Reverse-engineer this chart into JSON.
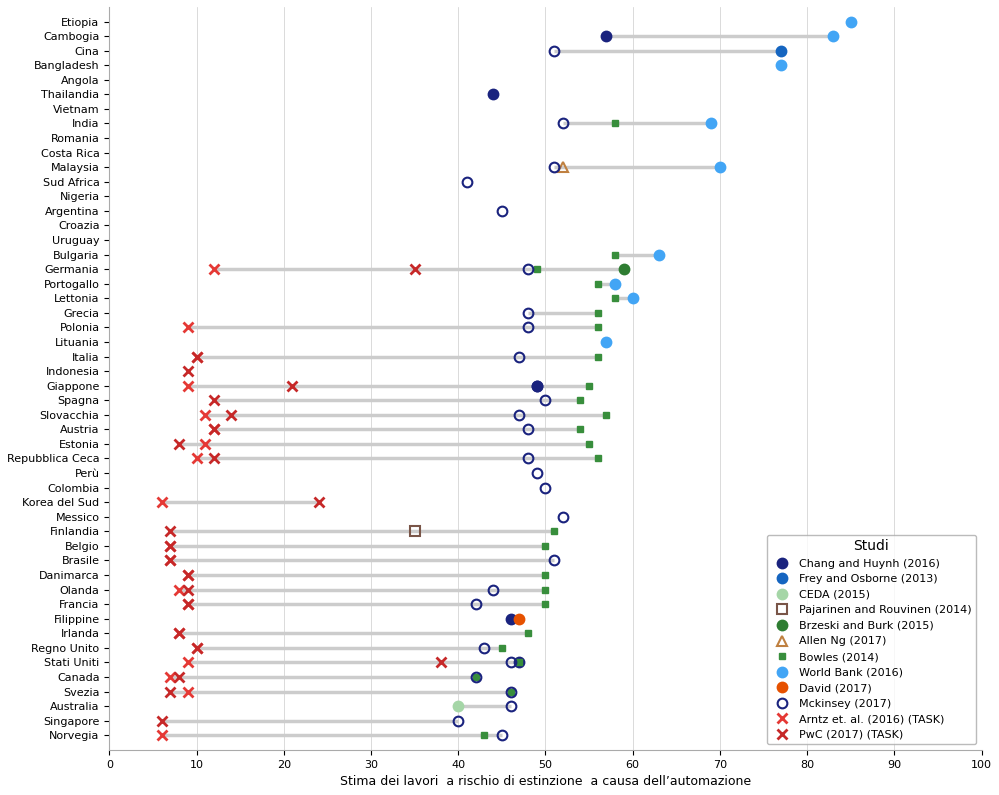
{
  "countries": [
    "Etiopia",
    "Cambogia",
    "Cina",
    "Bangladesh",
    "Angola",
    "Thailandia",
    "Vietnam",
    "India",
    "Romania",
    "Costa Rica",
    "Malaysia",
    "Sud Africa",
    "Nigeria",
    "Argentina",
    "Croazia",
    "Uruguay",
    "Bulgaria",
    "Germania",
    "Portogallo",
    "Lettonia",
    "Grecia",
    "Polonia",
    "Lituania",
    "Italia",
    "Indonesia",
    "Giappone",
    "Spagna",
    "Slovacchia",
    "Austria",
    "Estonia",
    "Repubblica Ceca",
    "Perù",
    "Colombia",
    "Korea del Sud",
    "Messico",
    "Finlandia",
    "Belgio",
    "Brasile",
    "Danimarca",
    "Olanda",
    "Francia",
    "Filippine",
    "Irlanda",
    "Regno Unito",
    "Stati Uniti",
    "Canada",
    "Svezia",
    "Australia",
    "Singapore",
    "Norvegia"
  ],
  "data": {
    "Chang and Huynh (2016)": {
      "color": "#1a237e",
      "marker": "o",
      "filled": true,
      "size": 55,
      "values": {
        "Etiopia": null,
        "Cambogia": 57,
        "Cina": null,
        "Bangladesh": null,
        "Angola": null,
        "Thailandia": 44,
        "Vietnam": null,
        "India": null,
        "Romania": null,
        "Costa Rica": null,
        "Malaysia": null,
        "Sud Africa": null,
        "Nigeria": null,
        "Argentina": null,
        "Croazia": null,
        "Uruguay": null,
        "Bulgaria": null,
        "Germania": null,
        "Portogallo": null,
        "Lettonia": null,
        "Grecia": null,
        "Polonia": null,
        "Lituania": null,
        "Italia": null,
        "Indonesia": null,
        "Giappone": 49,
        "Spagna": null,
        "Slovacchia": null,
        "Austria": null,
        "Estonia": null,
        "Repubblica Ceca": null,
        "Perù": null,
        "Colombia": null,
        "Korea del Sud": null,
        "Messico": null,
        "Finlandia": null,
        "Belgio": null,
        "Brasile": null,
        "Danimarca": null,
        "Olanda": null,
        "Francia": null,
        "Filippine": 46,
        "Irlanda": null,
        "Regno Unito": null,
        "Stati Uniti": 47,
        "Canada": null,
        "Svezia": null,
        "Australia": null,
        "Singapore": null,
        "Norvegia": null
      }
    },
    "Frey and Osborne (2013)": {
      "color": "#1565c0",
      "marker": "o",
      "filled": true,
      "size": 55,
      "values": {
        "Etiopia": null,
        "Cambogia": null,
        "Cina": null,
        "Bangladesh": null,
        "Angola": null,
        "Thailandia": null,
        "Vietnam": null,
        "India": null,
        "Romania": null,
        "Costa Rica": null,
        "Malaysia": null,
        "Sud Africa": null,
        "Nigeria": null,
        "Argentina": null,
        "Croazia": null,
        "Uruguay": null,
        "Bulgaria": null,
        "Germania": null,
        "Portogallo": null,
        "Lettonia": null,
        "Grecia": null,
        "Polonia": null,
        "Lituania": null,
        "Italia": null,
        "Indonesia": null,
        "Giappone": null,
        "Spagna": null,
        "Slovacchia": null,
        "Austria": null,
        "Estonia": null,
        "Repubblica Ceca": null,
        "Perù": null,
        "Colombia": null,
        "Korea del Sud": null,
        "Messico": null,
        "Finlandia": null,
        "Belgio": null,
        "Brasile": null,
        "Danimarca": null,
        "Olanda": null,
        "Francia": null,
        "Filippine": null,
        "Irlanda": null,
        "Regno Unito": null,
        "Stati Uniti": null,
        "Canada": null,
        "Svezia": null,
        "Australia": null,
        "Singapore": null,
        "Norvegia": null
      }
    },
    "CEDA (2015)": {
      "color": "#a5d6a7",
      "marker": "o",
      "filled": true,
      "size": 55,
      "values": {
        "Etiopia": null,
        "Cambogia": null,
        "Cina": null,
        "Bangladesh": null,
        "Angola": null,
        "Thailandia": null,
        "Vietnam": null,
        "India": null,
        "Romania": null,
        "Costa Rica": null,
        "Malaysia": null,
        "Sud Africa": null,
        "Nigeria": null,
        "Argentina": null,
        "Croazia": null,
        "Uruguay": null,
        "Bulgaria": null,
        "Germania": null,
        "Portogallo": null,
        "Lettonia": null,
        "Grecia": null,
        "Polonia": null,
        "Lituania": null,
        "Italia": null,
        "Indonesia": null,
        "Giappone": null,
        "Spagna": null,
        "Slovacchia": null,
        "Austria": null,
        "Estonia": null,
        "Repubblica Ceca": null,
        "Perù": null,
        "Colombia": null,
        "Korea del Sud": null,
        "Messico": null,
        "Finlandia": null,
        "Belgio": null,
        "Brasile": null,
        "Danimarca": null,
        "Olanda": null,
        "Francia": null,
        "Filippine": null,
        "Irlanda": null,
        "Regno Unito": null,
        "Stati Uniti": null,
        "Canada": null,
        "Svezia": null,
        "Australia": 40,
        "Singapore": null,
        "Norvegia": null
      }
    },
    "Pajarinen and Rouvinen (2014)": {
      "color": "#5d4037",
      "marker": "s",
      "filled": false,
      "size": 45,
      "values": {
        "Etiopia": null,
        "Cambogia": null,
        "Cina": null,
        "Bangladesh": null,
        "Angola": null,
        "Thailandia": null,
        "Vietnam": null,
        "India": null,
        "Romania": null,
        "Costa Rica": null,
        "Malaysia": null,
        "Sud Africa": null,
        "Nigeria": null,
        "Argentina": null,
        "Croazia": null,
        "Uruguay": null,
        "Bulgaria": null,
        "Germania": null,
        "Portogallo": null,
        "Lettonia": null,
        "Grecia": null,
        "Polonia": null,
        "Lituania": null,
        "Italia": null,
        "Indonesia": null,
        "Giappone": null,
        "Spagna": null,
        "Slovacchia": null,
        "Austria": null,
        "Estonia": null,
        "Repubblica Ceca": null,
        "Perù": null,
        "Colombia": null,
        "Korea del Sud": null,
        "Messico": null,
        "Finlandia": 35,
        "Belgio": null,
        "Brasile": null,
        "Danimarca": null,
        "Olanda": null,
        "Francia": null,
        "Filippine": null,
        "Irlanda": null,
        "Regno Unito": null,
        "Stati Uniti": null,
        "Canada": null,
        "Svezia": null,
        "Australia": null,
        "Singapore": null,
        "Norvegia": null
      }
    },
    "Brzeski and Burk (2015)": {
      "color": "#2e7d32",
      "marker": "o",
      "filled": true,
      "size": 55,
      "values": {
        "Etiopia": null,
        "Cambogia": null,
        "Cina": null,
        "Bangladesh": null,
        "Angola": null,
        "Thailandia": null,
        "Vietnam": null,
        "India": null,
        "Romania": null,
        "Costa Rica": null,
        "Malaysia": null,
        "Sud Africa": null,
        "Nigeria": null,
        "Argentina": null,
        "Croazia": null,
        "Uruguay": null,
        "Bulgaria": null,
        "Germania": 59,
        "Portogallo": null,
        "Lettonia": null,
        "Grecia": null,
        "Polonia": null,
        "Lituania": null,
        "Italia": null,
        "Indonesia": null,
        "Giappone": null,
        "Spagna": null,
        "Slovacchia": null,
        "Austria": null,
        "Estonia": null,
        "Repubblica Ceca": null,
        "Perù": null,
        "Colombia": null,
        "Korea del Sud": null,
        "Messico": null,
        "Finlandia": null,
        "Belgio": null,
        "Brasile": null,
        "Danimarca": null,
        "Olanda": null,
        "Francia": null,
        "Filippine": null,
        "Irlanda": null,
        "Regno Unito": null,
        "Stati Uniti": null,
        "Canada": null,
        "Svezia": null,
        "Australia": null,
        "Singapore": null,
        "Norvegia": null
      }
    },
    "Allen Ng (2017)": {
      "color": "#bf8040",
      "marker": "^",
      "filled": false,
      "size": 55,
      "values": {
        "Etiopia": null,
        "Cambogia": null,
        "Cina": null,
        "Bangladesh": null,
        "Angola": null,
        "Thailandia": null,
        "Vietnam": null,
        "India": null,
        "Romania": null,
        "Costa Rica": null,
        "Malaysia": 52,
        "Sud Africa": null,
        "Nigeria": null,
        "Argentina": null,
        "Croazia": null,
        "Uruguay": null,
        "Bulgaria": null,
        "Germania": null,
        "Portogallo": null,
        "Lettonia": null,
        "Grecia": null,
        "Polonia": null,
        "Lituania": null,
        "Italia": null,
        "Indonesia": null,
        "Giappone": null,
        "Spagna": null,
        "Slovacchia": null,
        "Austria": null,
        "Estonia": null,
        "Repubblica Ceca": null,
        "Perù": null,
        "Colombia": null,
        "Korea del Sud": null,
        "Messico": null,
        "Finlandia": null,
        "Belgio": null,
        "Brasile": null,
        "Danimarca": null,
        "Olanda": null,
        "Francia": null,
        "Filippine": null,
        "Irlanda": null,
        "Regno Unito": null,
        "Stati Uniti": null,
        "Canada": null,
        "Svezia": null,
        "Australia": null,
        "Singapore": null,
        "Norvegia": null
      }
    },
    "Bowles (2014)": {
      "color": "#388e3c",
      "marker": "s",
      "filled": true,
      "size": 30,
      "values": {
        "Etiopia": null,
        "Cambogia": null,
        "Cina": null,
        "Bangladesh": null,
        "Angola": null,
        "Thailandia": null,
        "Vietnam": null,
        "India": 58,
        "Romania": null,
        "Costa Rica": null,
        "Malaysia": null,
        "Sud Africa": null,
        "Nigeria": null,
        "Argentina": null,
        "Croazia": null,
        "Uruguay": null,
        "Bulgaria": 58,
        "Germania": 49,
        "Portogallo": 56,
        "Lettonia": 58,
        "Grecia": 56,
        "Polonia": 56,
        "Lituania": 57,
        "Italia": 56,
        "Indonesia": null,
        "Giappone": 55,
        "Spagna": 54,
        "Slovacchia": 57,
        "Austria": 54,
        "Estonia": 55,
        "Repubblica Ceca": 56,
        "Perù": null,
        "Colombia": null,
        "Korea del Sud": null,
        "Messico": null,
        "Finlandia": 51,
        "Belgio": 50,
        "Brasile": null,
        "Danimarca": 50,
        "Olanda": 50,
        "Francia": 50,
        "Filippine": null,
        "Irlanda": 48,
        "Regno Unito": 45,
        "Stati Uniti": 47,
        "Canada": 42,
        "Svezia": 46,
        "Australia": null,
        "Singapore": null,
        "Norvegia": 43
      }
    },
    "World Bank (2016)": {
      "color": "#42a5f5",
      "marker": "o",
      "filled": true,
      "size": 55,
      "values": {
        "Etiopia": 85,
        "Cambogia": 83,
        "Cina": null,
        "Bangladesh": 77,
        "Angola": null,
        "Thailandia": null,
        "Vietnam": null,
        "India": 69,
        "Romania": null,
        "Costa Rica": null,
        "Malaysia": 70,
        "Sud Africa": null,
        "Nigeria": null,
        "Argentina": null,
        "Croazia": null,
        "Uruguay": null,
        "Bulgaria": 63,
        "Germania": null,
        "Portogallo": 58,
        "Lettonia": 60,
        "Grecia": null,
        "Polonia": null,
        "Lituania": 57,
        "Italia": null,
        "Indonesia": null,
        "Giappone": null,
        "Spagna": null,
        "Slovacchia": null,
        "Austria": null,
        "Estonia": null,
        "Repubblica Ceca": null,
        "Perù": null,
        "Colombia": null,
        "Korea del Sud": null,
        "Messico": null,
        "Finlandia": null,
        "Belgio": null,
        "Brasile": null,
        "Danimarca": null,
        "Olanda": null,
        "Francia": null,
        "Filippine": null,
        "Irlanda": null,
        "Regno Unito": null,
        "Stati Uniti": null,
        "Canada": null,
        "Svezia": null,
        "Australia": null,
        "Singapore": null,
        "Norvegia": null
      }
    },
    "David (2017)": {
      "color": "#e65100",
      "marker": "o",
      "filled": true,
      "size": 55,
      "values": {
        "Etiopia": null,
        "Cambogia": null,
        "Cina": null,
        "Bangladesh": null,
        "Angola": null,
        "Thailandia": null,
        "Vietnam": null,
        "India": null,
        "Romania": null,
        "Costa Rica": null,
        "Malaysia": null,
        "Sud Africa": null,
        "Nigeria": null,
        "Argentina": null,
        "Croazia": null,
        "Uruguay": null,
        "Bulgaria": null,
        "Germania": null,
        "Portogallo": null,
        "Lettonia": null,
        "Grecia": null,
        "Polonia": null,
        "Lituania": null,
        "Italia": null,
        "Indonesia": null,
        "Giappone": null,
        "Spagna": null,
        "Slovacchia": null,
        "Austria": null,
        "Estonia": null,
        "Repubblica Ceca": null,
        "Perù": null,
        "Colombia": null,
        "Korea del Sud": null,
        "Messico": null,
        "Finlandia": null,
        "Belgio": null,
        "Brasile": null,
        "Danimarca": null,
        "Olanda": null,
        "Francia": null,
        "Filippine": 47,
        "Irlanda": null,
        "Regno Unito": null,
        "Stati Uniti": null,
        "Canada": null,
        "Svezia": null,
        "Australia": null,
        "Singapore": null,
        "Norvegia": null
      }
    },
    "Mckinsey (2017)": {
      "color": "#1a237e",
      "marker": "o",
      "filled": false,
      "size": 60,
      "values": {
        "Etiopia": null,
        "Cambogia": null,
        "Cina": 51,
        "Bangladesh": null,
        "Angola": null,
        "Thailandia": null,
        "Vietnam": null,
        "India": 52,
        "Romania": null,
        "Costa Rica": null,
        "Malaysia": 51,
        "Sud Africa": 41,
        "Nigeria": null,
        "Argentina": 45,
        "Croazia": null,
        "Uruguay": null,
        "Bulgaria": null,
        "Germania": 48,
        "Portogallo": null,
        "Lettonia": null,
        "Grecia": 48,
        "Polonia": 48,
        "Lituania": null,
        "Italia": 47,
        "Indonesia": null,
        "Giappone": 49,
        "Spagna": 50,
        "Slovacchia": 47,
        "Austria": 48,
        "Estonia": null,
        "Repubblica Ceca": 48,
        "Perù": 49,
        "Colombia": 50,
        "Korea del Sud": null,
        "Messico": 52,
        "Finlandia": null,
        "Belgio": null,
        "Brasile": 51,
        "Danimarca": null,
        "Olanda": 44,
        "Francia": 42,
        "Filippine": null,
        "Irlanda": null,
        "Regno Unito": 43,
        "Stati Uniti": 46,
        "Canada": 42,
        "Svezia": 46,
        "Australia": 46,
        "Singapore": 40,
        "Norvegia": 45
      }
    },
    "Arntz et. al. (2016) (TASK)": {
      "color": "#e53935",
      "marker": "x",
      "filled": true,
      "size": 60,
      "values": {
        "Etiopia": null,
        "Cambogia": null,
        "Cina": null,
        "Bangladesh": null,
        "Angola": null,
        "Thailandia": null,
        "Vietnam": null,
        "India": null,
        "Romania": null,
        "Costa Rica": null,
        "Malaysia": null,
        "Sud Africa": null,
        "Nigeria": null,
        "Argentina": null,
        "Croazia": null,
        "Uruguay": null,
        "Bulgaria": null,
        "Germania": 12,
        "Portogallo": null,
        "Lettonia": null,
        "Grecia": null,
        "Polonia": 9,
        "Lituania": null,
        "Italia": 10,
        "Indonesia": null,
        "Giappone": 9,
        "Spagna": null,
        "Slovacchia": 11,
        "Austria": 12,
        "Estonia": 11,
        "Repubblica Ceca": 10,
        "Perù": null,
        "Colombia": null,
        "Korea del Sud": 6,
        "Messico": null,
        "Finlandia": null,
        "Belgio": 7,
        "Brasile": 7,
        "Danimarca": 9,
        "Olanda": 8,
        "Francia": 9,
        "Filippine": null,
        "Irlanda": 8,
        "Regno Unito": 10,
        "Stati Uniti": 9,
        "Canada": 7,
        "Svezia": 9,
        "Australia": null,
        "Singapore": null,
        "Norvegia": 6
      }
    },
    "PwC (2017) (TASK)": {
      "color": "#c62828",
      "marker": "x",
      "filled": true,
      "size": 60,
      "values": {
        "Etiopia": null,
        "Cambogia": null,
        "Cina": null,
        "Bangladesh": null,
        "Angola": null,
        "Thailandia": null,
        "Vietnam": null,
        "India": null,
        "Romania": null,
        "Costa Rica": null,
        "Malaysia": null,
        "Sud Africa": null,
        "Nigeria": null,
        "Argentina": null,
        "Croazia": null,
        "Uruguay": null,
        "Bulgaria": null,
        "Germania": 35,
        "Portogallo": null,
        "Lettonia": null,
        "Grecia": null,
        "Polonia": null,
        "Lituania": null,
        "Italia": 10,
        "Indonesia": 9,
        "Giappone": 21,
        "Spagna": 12,
        "Slovacchia": 14,
        "Austria": 12,
        "Estonia": 8,
        "Repubblica Ceca": 12,
        "Perù": null,
        "Colombia": null,
        "Korea del Sud": 24,
        "Messico": null,
        "Finlandia": 7,
        "Belgio": 7,
        "Brasile": 7,
        "Danimarca": 9,
        "Olanda": 9,
        "Francia": 9,
        "Filippine": null,
        "Irlanda": 8,
        "Regno Unito": 10,
        "Stati Uniti": 38,
        "Canada": 8,
        "Svezia": 7,
        "Australia": null,
        "Singapore": 6,
        "Norvegia": null
      }
    }
  },
  "frey_osborne_data": {
    "Etiopia": null,
    "Cambogia": null,
    "Cina": 77,
    "Bangladesh": null,
    "Angola": null,
    "Thailandia": null,
    "Vietnam": null,
    "India": null,
    "Romania": null,
    "Costa Rica": null,
    "Malaysia": null,
    "Sud Africa": null,
    "Nigeria": null,
    "Argentina": null,
    "Croazia": null,
    "Uruguay": null,
    "Bulgaria": null,
    "Germania": null,
    "Portogallo": null,
    "Lettonia": null,
    "Grecia": null,
    "Polonia": null,
    "Lituania": null,
    "Italia": null,
    "Indonesia": null,
    "Giappone": null,
    "Spagna": null,
    "Slovacchia": null,
    "Austria": null,
    "Estonia": null,
    "Repubblica Ceca": null,
    "Perù": null,
    "Colombia": null,
    "Korea del Sud": null,
    "Messico": null,
    "Finlandia": null,
    "Belgio": null,
    "Brasile": null,
    "Danimarca": null,
    "Olanda": null,
    "Francia": null,
    "Filippine": null,
    "Irlanda": null,
    "Regno Unito": null,
    "Stati Uniti": null,
    "Canada": null,
    "Svezia": null,
    "Australia": null,
    "Singapore": null,
    "Norvegia": null
  },
  "xlabel": "Stima dei lavori  a rischio di estinzione  a causa dell’automazione",
  "xlim": [
    0,
    100
  ],
  "background_color": "#ffffff",
  "grid_color": "#cccccc"
}
